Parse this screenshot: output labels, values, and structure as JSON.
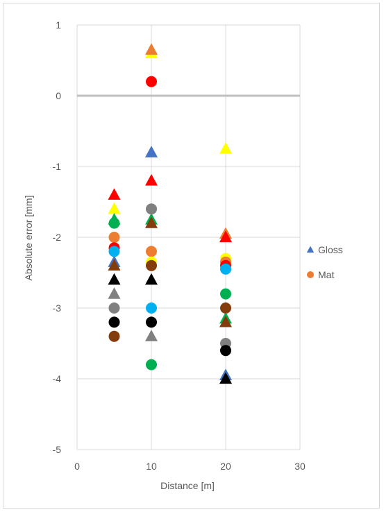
{
  "chart_data": {
    "type": "scatter",
    "title": "",
    "xlabel": "Distance [m]",
    "ylabel": "Absolute error [mm]",
    "xlim": [
      0,
      30
    ],
    "ylim": [
      -5,
      1
    ],
    "x_ticks": [
      "0",
      "10",
      "20",
      "30"
    ],
    "y_ticks": [
      "1",
      "0",
      "-1",
      "-2",
      "-3",
      "-4",
      "-5"
    ],
    "grid": true,
    "zero_line": true,
    "legend_position": "right",
    "series": [
      {
        "name": "Gloss",
        "marker": "triangle",
        "legend_color": "#4472C4",
        "points": [
          {
            "x": 5,
            "y": -1.4,
            "color": "#FF0000"
          },
          {
            "x": 5,
            "y": -1.6,
            "color": "#FFFF00"
          },
          {
            "x": 5,
            "y": -1.75,
            "color": "#00B050"
          },
          {
            "x": 5,
            "y": -2.35,
            "color": "#4472C4"
          },
          {
            "x": 5,
            "y": -2.4,
            "color": "#843C0C"
          },
          {
            "x": 5,
            "y": -2.6,
            "color": "#000000"
          },
          {
            "x": 5,
            "y": -2.8,
            "color": "#808080"
          },
          {
            "x": 10,
            "y": 0.6,
            "color": "#FFFF00"
          },
          {
            "x": 10,
            "y": 0.65,
            "color": "#ED7D31"
          },
          {
            "x": 10,
            "y": -0.8,
            "color": "#4472C4"
          },
          {
            "x": 10,
            "y": -1.2,
            "color": "#FF0000"
          },
          {
            "x": 10,
            "y": -1.75,
            "color": "#00B050"
          },
          {
            "x": 10,
            "y": -1.8,
            "color": "#843C0C"
          },
          {
            "x": 10,
            "y": -2.6,
            "color": "#000000"
          },
          {
            "x": 10,
            "y": -3.4,
            "color": "#808080"
          },
          {
            "x": 20,
            "y": -0.75,
            "color": "#FFFF00"
          },
          {
            "x": 20,
            "y": -1.95,
            "color": "#ED7D31"
          },
          {
            "x": 20,
            "y": -2.0,
            "color": "#FF0000"
          },
          {
            "x": 20,
            "y": -3.15,
            "color": "#00B050"
          },
          {
            "x": 20,
            "y": -3.2,
            "color": "#843C0C"
          },
          {
            "x": 20,
            "y": -3.95,
            "color": "#4472C4"
          },
          {
            "x": 20,
            "y": -4.0,
            "color": "#000000"
          }
        ]
      },
      {
        "name": "Mat",
        "marker": "circle",
        "legend_color": "#ED7D31",
        "points": [
          {
            "x": 5,
            "y": -1.8,
            "color": "#00B050"
          },
          {
            "x": 5,
            "y": -2.0,
            "color": "#ED7D31"
          },
          {
            "x": 5,
            "y": -2.15,
            "color": "#FF0000"
          },
          {
            "x": 5,
            "y": -2.2,
            "color": "#00B0F0"
          },
          {
            "x": 5,
            "y": -3.0,
            "color": "#808080"
          },
          {
            "x": 5,
            "y": -3.2,
            "color": "#000000"
          },
          {
            "x": 5,
            "y": -3.4,
            "color": "#843C0C"
          },
          {
            "x": 10,
            "y": 0.2,
            "color": "#FF0000"
          },
          {
            "x": 10,
            "y": -1.6,
            "color": "#808080"
          },
          {
            "x": 10,
            "y": -2.2,
            "color": "#ED7D31"
          },
          {
            "x": 10,
            "y": -2.35,
            "color": "#FFFF00"
          },
          {
            "x": 10,
            "y": -2.4,
            "color": "#843C0C"
          },
          {
            "x": 10,
            "y": -3.0,
            "color": "#00B0F0"
          },
          {
            "x": 10,
            "y": -3.2,
            "color": "#000000"
          },
          {
            "x": 10,
            "y": -3.8,
            "color": "#00B050"
          },
          {
            "x": 20,
            "y": -2.3,
            "color": "#FFFF00"
          },
          {
            "x": 20,
            "y": -2.35,
            "color": "#ED7D31"
          },
          {
            "x": 20,
            "y": -2.4,
            "color": "#FF0000"
          },
          {
            "x": 20,
            "y": -2.45,
            "color": "#00B0F0"
          },
          {
            "x": 20,
            "y": -2.8,
            "color": "#00B050"
          },
          {
            "x": 20,
            "y": -3.0,
            "color": "#843C0C"
          },
          {
            "x": 20,
            "y": -3.5,
            "color": "#808080"
          },
          {
            "x": 20,
            "y": -3.6,
            "color": "#000000"
          }
        ]
      }
    ]
  }
}
